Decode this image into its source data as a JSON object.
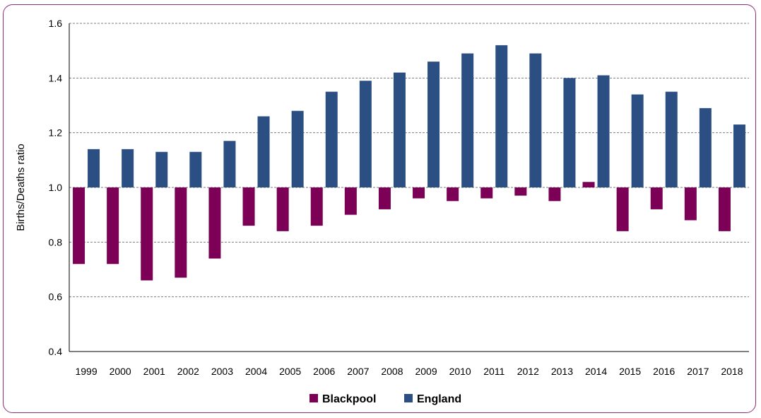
{
  "chart_data": {
    "type": "bar",
    "categories": [
      "1999",
      "2000",
      "2001",
      "2002",
      "2003",
      "2004",
      "2005",
      "2006",
      "2007",
      "2008",
      "2009",
      "2010",
      "2011",
      "2012",
      "2013",
      "2014",
      "2015",
      "2016",
      "2017",
      "2018"
    ],
    "baseline": 1.0,
    "series": [
      {
        "name": "Blackpool",
        "color": "#7b0056",
        "values": [
          0.72,
          0.72,
          0.66,
          0.67,
          0.74,
          0.86,
          0.84,
          0.86,
          0.9,
          0.92,
          0.96,
          0.95,
          0.96,
          0.97,
          0.95,
          1.02,
          0.84,
          0.92,
          0.88,
          0.84
        ]
      },
      {
        "name": "England",
        "color": "#2b4f82",
        "values": [
          1.14,
          1.14,
          1.13,
          1.13,
          1.17,
          1.26,
          1.28,
          1.35,
          1.39,
          1.42,
          1.46,
          1.49,
          1.52,
          1.49,
          1.4,
          1.41,
          1.34,
          1.35,
          1.29,
          1.23
        ]
      }
    ],
    "title": "",
    "xlabel": "",
    "ylabel": "Births/Deaths ratio",
    "ylim": [
      0.4,
      1.6
    ],
    "yticks": [
      "0.4",
      "0.6",
      "0.8",
      "1.0",
      "1.2",
      "1.4",
      "1.6"
    ],
    "grid": true,
    "legend": "bottom-center"
  }
}
